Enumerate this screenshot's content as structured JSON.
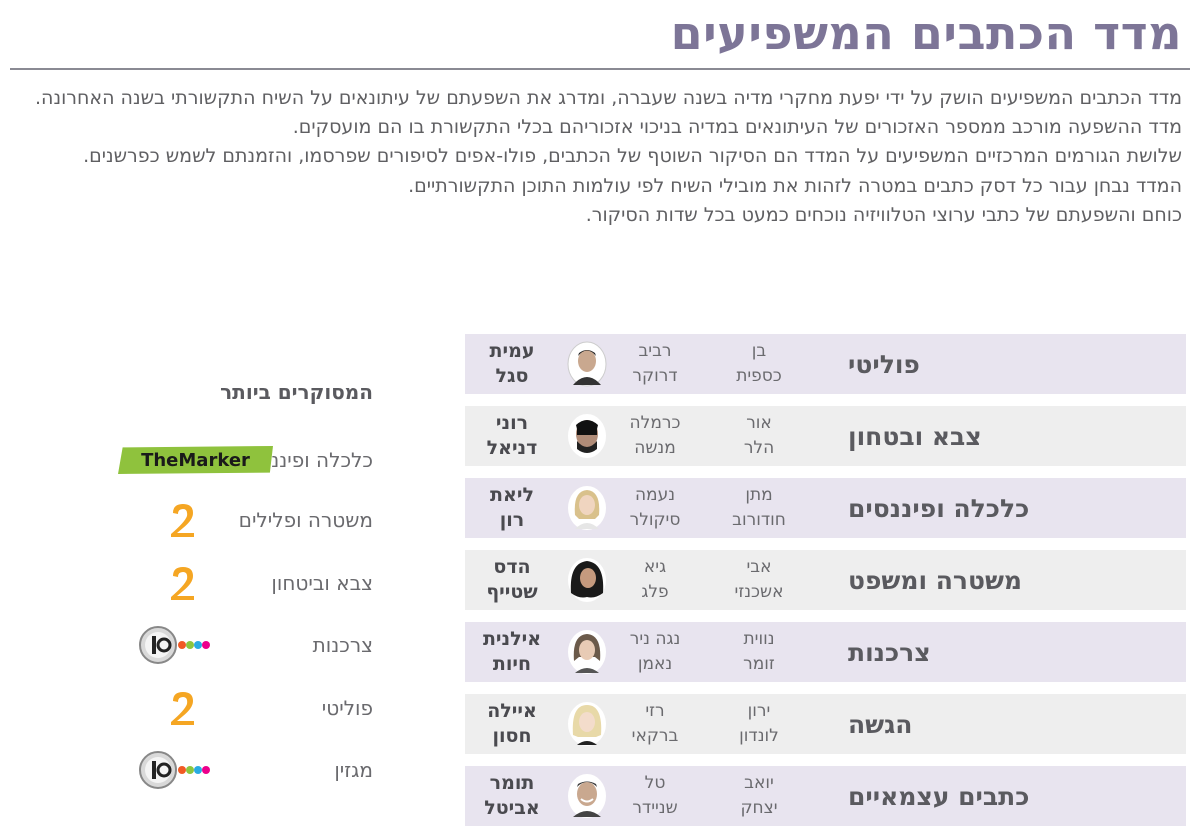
{
  "title": "מדד הכתבים המשפיעים",
  "intro": [
    "מדד הכתבים המשפיעים הושק על ידי יפעת מחקרי מדיה בשנה שעברה, ומדרג את השפעתם של עיתונאים על השיח התקשורתי בשנה האחרונה.",
    "מדד ההשפעה מורכב ממספר האזכורים של העיתונאים במדיה בניכוי אזכוריהם בכלי התקשורת בו הם מועסקים.",
    "שלושת הגורמים המרכזיים המשפיעים על המדד הם הסיקור השוטף של הכתבים, פולו-אפים לסיפורים שפרסמו, והזמנתם לשמש כפרשנים.",
    "המדד נבחן עבור כל דסק כתבים במטרה לזהות את מובילי השיח לפי עולמות התוכן התקשורתיים.",
    "כוחם והשפעתם של כתבי ערוצי הטלוויזיה נוכחים כמעט בכל שדות הסיקור."
  ],
  "rankings": [
    {
      "category": "פוליטי",
      "third": [
        "בן",
        "כספית"
      ],
      "second": [
        "רביב",
        "דרוקר"
      ],
      "top": [
        "עמית",
        "סגל"
      ],
      "portrait": "man-portrait-icon"
    },
    {
      "category": "צבא ובטחון",
      "third": [
        "אור",
        "הלר"
      ],
      "second": [
        "כרמלה",
        "מנשה"
      ],
      "top": [
        "רוני",
        "דניאל"
      ],
      "portrait": "man-sunglasses-portrait-icon"
    },
    {
      "category": "כלכלה ופיננסים",
      "third": [
        "מתן",
        "חודורוב"
      ],
      "second": [
        "נעמה",
        "סיקולר"
      ],
      "top": [
        "ליאת",
        "רון"
      ],
      "portrait": "woman-blonde-portrait-icon"
    },
    {
      "category": "משטרה ומשפט",
      "third": [
        "אבי",
        "אשכנזי"
      ],
      "second": [
        "גיא",
        "פלג"
      ],
      "top": [
        "הדס",
        "שטייף"
      ],
      "portrait": "woman-dark-hair-portrait-icon"
    },
    {
      "category": "צרכנות",
      "third": [
        "נווית",
        "זומר"
      ],
      "second": [
        "נגה ניר",
        "נאמן"
      ],
      "top": [
        "אילנית",
        "חיות"
      ],
      "portrait": "woman-portrait-icon"
    },
    {
      "category": "הגשה",
      "third": [
        "ירון",
        "לונדון"
      ],
      "second": [
        "רזי",
        "ברקאי"
      ],
      "top": [
        "איילה",
        "חסון"
      ],
      "portrait": "woman-light-hair-portrait-icon"
    },
    {
      "category": "כתבים עצמאיים",
      "third": [
        "יואב",
        "יצחק"
      ],
      "second": [
        "טל",
        "שניידר"
      ],
      "top": [
        "תומר",
        "אביטל"
      ],
      "portrait": "man-smiling-portrait-icon"
    }
  ],
  "most_covered": {
    "heading": "המסוקרים ביותר",
    "items": [
      {
        "label": "כלכלה ופיננסים",
        "logo": "themarker-logo",
        "logo_text": {
          "the": "The",
          "marker": "Marker"
        }
      },
      {
        "label": "משטרה ופלילים",
        "logo": "channel-2-logo"
      },
      {
        "label": "צבא וביטחון",
        "logo": "channel-2-logo"
      },
      {
        "label": "צרכנות",
        "logo": "channel-10-logo"
      },
      {
        "label": "פוליטי",
        "logo": "channel-2-logo"
      },
      {
        "label": "מגזין",
        "logo": "channel-10-logo"
      }
    ]
  },
  "colors": {
    "title": "#7d7597",
    "row_purple": "#e8e4ef",
    "row_grey": "#eeeeee",
    "themarker_green": "#8fc23d",
    "channel2_orange": "#f5a623"
  }
}
